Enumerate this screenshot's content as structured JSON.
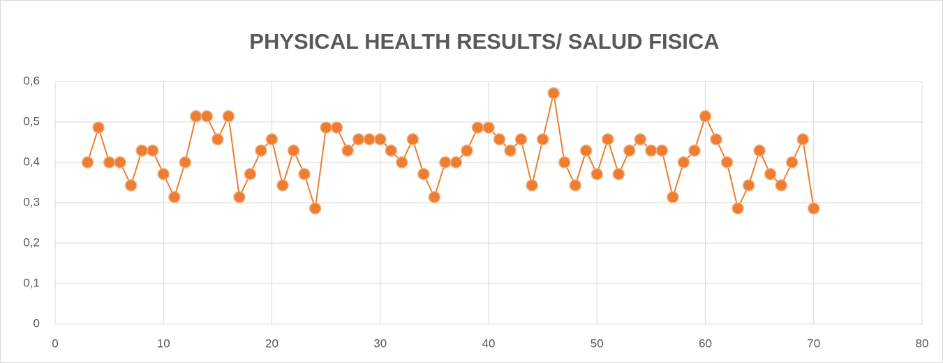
{
  "chart_data": {
    "type": "scatter",
    "title": "PHYSICAL HEALTH RESULTS/ SALUD FISICA",
    "x": [
      3,
      4,
      5,
      6,
      7,
      8,
      9,
      10,
      11,
      12,
      13,
      14,
      15,
      16,
      17,
      18,
      19,
      20,
      21,
      22,
      23,
      24,
      25,
      26,
      27,
      28,
      29,
      30,
      31,
      32,
      33,
      34,
      35,
      36,
      37,
      38,
      39,
      40,
      41,
      42,
      43,
      44,
      45,
      46,
      47,
      48,
      49,
      50,
      51,
      52,
      53,
      54,
      55,
      56,
      57,
      58,
      59,
      60,
      61,
      62,
      63,
      64,
      65,
      66,
      67,
      68,
      69,
      70
    ],
    "values": [
      0.4,
      0.486,
      0.4,
      0.4,
      0.343,
      0.429,
      0.429,
      0.371,
      0.314,
      0.4,
      0.514,
      0.514,
      0.457,
      0.514,
      0.314,
      0.371,
      0.429,
      0.457,
      0.343,
      0.429,
      0.371,
      0.286,
      0.486,
      0.486,
      0.429,
      0.457,
      0.457,
      0.457,
      0.429,
      0.4,
      0.457,
      0.371,
      0.314,
      0.4,
      0.4,
      0.429,
      0.486,
      0.486,
      0.457,
      0.429,
      0.457,
      0.343,
      0.457,
      0.571,
      0.4,
      0.343,
      0.429,
      0.371,
      0.457,
      0.371,
      0.429,
      0.457,
      0.429,
      0.429,
      0.314,
      0.4,
      0.429,
      0.514,
      0.457,
      0.4,
      0.286,
      0.343,
      0.429,
      0.371,
      0.343,
      0.4,
      0.457,
      0.286
    ],
    "color": "#ed7d31",
    "xlim": [
      0,
      80
    ],
    "xticks": [
      0,
      10,
      20,
      30,
      40,
      50,
      60,
      70,
      80
    ],
    "ylim": [
      0,
      0.6
    ],
    "yticks": [
      0,
      {
        "value": 0.1,
        "label": "0,1"
      },
      {
        "value": 0.2,
        "label": "0,2"
      },
      {
        "value": 0.3,
        "label": "0,3"
      },
      {
        "value": 0.4,
        "label": "0,4"
      },
      {
        "value": 0.5,
        "label": "0,5"
      },
      {
        "value": 0.6,
        "label": "0,6"
      }
    ],
    "grid": true
  }
}
